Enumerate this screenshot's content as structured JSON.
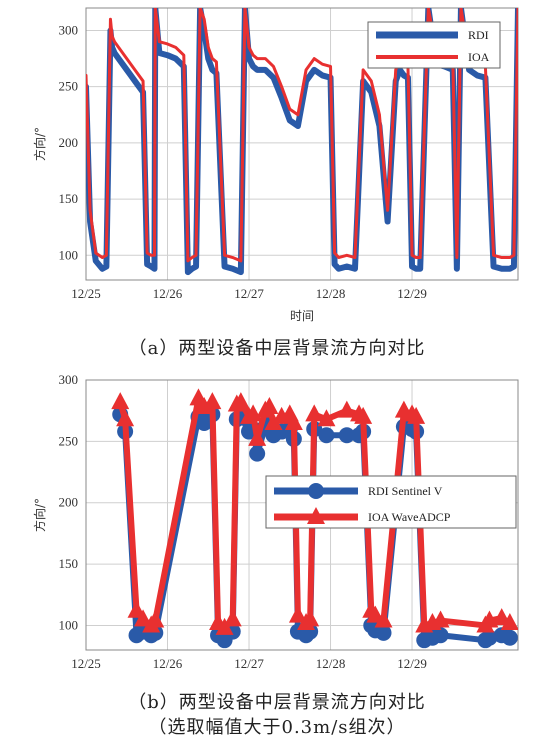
{
  "chart_data": [
    {
      "type": "line",
      "ylabel": "方向/°",
      "xlabel": "时间",
      "x_ticks": [
        "12/25",
        "12/26",
        "12/27",
        "12/28",
        "12/29"
      ],
      "y_ticks": [
        100,
        150,
        200,
        250,
        300
      ],
      "ylim": [
        78,
        320
      ],
      "xlim": [
        0,
        5.3
      ],
      "grid": true,
      "legend_position": "top-right",
      "caption": "（a）两型设备中层背景流方向对比",
      "series": [
        {
          "name": "RDI",
          "color": "#2a5aa8",
          "x": [
            0.0,
            0.05,
            0.12,
            0.2,
            0.25,
            0.3,
            0.32,
            0.35,
            0.4,
            0.5,
            0.6,
            0.7,
            0.75,
            0.8,
            0.84,
            0.85,
            0.9,
            1.0,
            1.1,
            1.2,
            1.25,
            1.3,
            1.35,
            1.4,
            1.45,
            1.5,
            1.55,
            1.6,
            1.7,
            1.8,
            1.9,
            1.95,
            2.0,
            2.05,
            2.1,
            2.2,
            2.3,
            2.4,
            2.5,
            2.6,
            2.7,
            2.8,
            2.9,
            3.0,
            3.05,
            3.1,
            3.2,
            3.3,
            3.4,
            3.5,
            3.6,
            3.7,
            3.8,
            3.85,
            3.9,
            3.95,
            4.0,
            4.05,
            4.1,
            4.2,
            4.3,
            4.4,
            4.5,
            4.55,
            4.6,
            4.7,
            4.8,
            4.9,
            5.0,
            5.1,
            5.2,
            5.25,
            5.3
          ],
          "y": [
            250,
            130,
            95,
            88,
            90,
            300,
            285,
            280,
            275,
            265,
            255,
            245,
            92,
            90,
            88,
            320,
            280,
            278,
            275,
            268,
            85,
            88,
            90,
            320,
            300,
            275,
            265,
            262,
            90,
            88,
            85,
            320,
            275,
            268,
            265,
            265,
            258,
            240,
            220,
            215,
            255,
            265,
            260,
            258,
            92,
            88,
            90,
            88,
            255,
            245,
            215,
            130,
            255,
            265,
            260,
            258,
            90,
            88,
            88,
            320,
            270,
            268,
            265,
            88,
            320,
            265,
            260,
            258,
            90,
            88,
            88,
            90,
            320
          ]
        },
        {
          "name": "IOA",
          "color": "#e83030",
          "x": [
            0.0,
            0.05,
            0.12,
            0.2,
            0.25,
            0.3,
            0.32,
            0.35,
            0.4,
            0.5,
            0.6,
            0.7,
            0.75,
            0.8,
            0.84,
            0.85,
            0.9,
            1.0,
            1.1,
            1.2,
            1.25,
            1.3,
            1.35,
            1.4,
            1.45,
            1.5,
            1.55,
            1.6,
            1.7,
            1.8,
            1.9,
            1.95,
            2.0,
            2.05,
            2.1,
            2.2,
            2.3,
            2.4,
            2.5,
            2.6,
            2.7,
            2.8,
            2.9,
            3.0,
            3.05,
            3.1,
            3.2,
            3.3,
            3.4,
            3.5,
            3.6,
            3.7,
            3.8,
            3.85,
            3.9,
            3.95,
            4.0,
            4.05,
            4.1,
            4.2,
            4.3,
            4.4,
            4.5,
            4.55,
            4.6,
            4.7,
            4.8,
            4.9,
            5.0,
            5.1,
            5.2,
            5.25,
            5.3
          ],
          "y": [
            260,
            140,
            102,
            98,
            100,
            310,
            295,
            290,
            285,
            275,
            265,
            255,
            102,
            100,
            100,
            320,
            290,
            288,
            285,
            278,
            95,
            98,
            100,
            320,
            310,
            285,
            275,
            272,
            100,
            98,
            95,
            320,
            285,
            278,
            275,
            275,
            268,
            250,
            230,
            225,
            265,
            275,
            270,
            268,
            102,
            98,
            100,
            98,
            265,
            255,
            225,
            140,
            265,
            275,
            270,
            268,
            100,
            98,
            98,
            320,
            280,
            278,
            275,
            98,
            320,
            275,
            270,
            268,
            100,
            98,
            98,
            100,
            320
          ]
        }
      ]
    },
    {
      "type": "line",
      "ylabel": "方向/°",
      "x_ticks": [
        "12/25",
        "12/26",
        "12/27",
        "12/28",
        "12/29"
      ],
      "y_ticks": [
        100,
        150,
        200,
        250,
        300
      ],
      "ylim": [
        80,
        300
      ],
      "xlim": [
        0,
        5.3
      ],
      "grid": true,
      "legend_position": "middle-right",
      "caption_line1": "（b）两型设备中层背景流方向对比",
      "caption_line2": "（选取幅值大于0.3m/s组次）",
      "series": [
        {
          "name": "RDI Sentinel V",
          "color": "#2a5aa8",
          "marker": "circle",
          "x": [
            0.42,
            0.48,
            0.62,
            0.7,
            0.8,
            0.85,
            1.38,
            1.45,
            1.55,
            1.62,
            1.7,
            1.8,
            1.85,
            1.9,
            2.0,
            2.05,
            2.1,
            2.2,
            2.25,
            2.3,
            2.4,
            2.5,
            2.55,
            2.6,
            2.7,
            2.75,
            2.8,
            2.95,
            3.2,
            3.35,
            3.4,
            3.5,
            3.55,
            3.65,
            3.9,
            4.0,
            4.05,
            4.15,
            4.25,
            4.35,
            4.9,
            4.95,
            5.1,
            5.2
          ],
          "y": [
            272,
            258,
            92,
            95,
            92,
            94,
            270,
            265,
            272,
            92,
            88,
            95,
            268,
            270,
            258,
            260,
            240,
            262,
            265,
            255,
            258,
            260,
            252,
            95,
            92,
            95,
            260,
            255,
            255,
            255,
            258,
            100,
            96,
            94,
            262,
            260,
            258,
            88,
            90,
            92,
            88,
            90,
            92,
            90
          ]
        },
        {
          "name": "IOA WaveADCP",
          "color": "#e83030",
          "marker": "triangle",
          "x": [
            0.42,
            0.48,
            0.62,
            0.7,
            0.8,
            0.85,
            1.38,
            1.45,
            1.55,
            1.62,
            1.7,
            1.8,
            1.85,
            1.9,
            2.0,
            2.05,
            2.1,
            2.2,
            2.25,
            2.3,
            2.4,
            2.5,
            2.55,
            2.6,
            2.7,
            2.75,
            2.8,
            2.95,
            3.2,
            3.35,
            3.4,
            3.5,
            3.55,
            3.65,
            3.9,
            4.0,
            4.05,
            4.15,
            4.25,
            4.35,
            4.9,
            4.95,
            5.1,
            5.2
          ],
          "y": [
            282,
            268,
            112,
            105,
            100,
            104,
            285,
            278,
            282,
            102,
            98,
            105,
            280,
            282,
            270,
            272,
            252,
            275,
            278,
            265,
            270,
            272,
            265,
            108,
            102,
            105,
            272,
            268,
            275,
            272,
            270,
            112,
            108,
            104,
            275,
            272,
            270,
            100,
            102,
            104,
            100,
            104,
            106,
            102
          ]
        }
      ]
    }
  ]
}
